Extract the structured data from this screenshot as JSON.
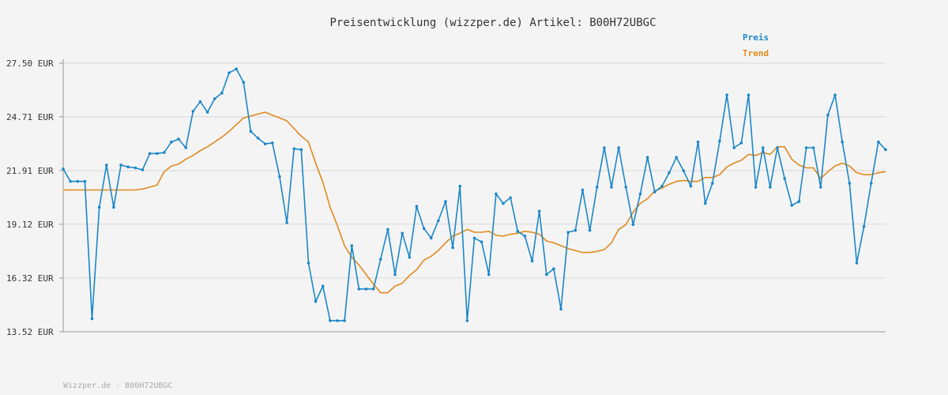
{
  "chart_data": {
    "type": "line",
    "title": "Preisentwicklung (wizzper.de) Artikel: B00H72UBGC",
    "footer": "Wizzper.de - B00H72UBGC",
    "y_ticks": [
      "27.50 EUR",
      "24.71 EUR",
      "21.91 EUR",
      "19.12 EUR",
      "16.32 EUR",
      "13.52 EUR"
    ],
    "y_tick_values": [
      27.5,
      24.71,
      21.91,
      19.12,
      16.32,
      13.52
    ],
    "ylim": [
      13.52,
      27.5
    ],
    "grid": true,
    "legend_position": "top-right",
    "colors": {
      "preis": "#1b87c8",
      "trend": "#e08a1e",
      "grid": "#d8d8d8",
      "axis": "#999999",
      "background": "#f4f4f4"
    },
    "series": [
      {
        "name": "Preis",
        "values": [
          22.0,
          21.35,
          21.35,
          21.35,
          14.2,
          20.0,
          22.2,
          20.0,
          22.2,
          22.1,
          22.05,
          21.95,
          22.8,
          22.8,
          22.85,
          23.4,
          23.55,
          23.1,
          25.0,
          25.5,
          24.95,
          25.65,
          25.95,
          27.0,
          27.2,
          26.5,
          23.95,
          23.6,
          23.3,
          23.35,
          21.6,
          19.2,
          23.05,
          23.0,
          17.1,
          15.1,
          15.9,
          14.1,
          14.1,
          14.1,
          18.0,
          15.75,
          15.75,
          15.75,
          17.3,
          18.85,
          16.5,
          18.65,
          17.4,
          20.05,
          18.9,
          18.4,
          19.3,
          20.3,
          17.9,
          21.1,
          14.1,
          18.4,
          18.2,
          16.5,
          20.7,
          20.2,
          20.5,
          18.75,
          18.5,
          17.2,
          19.8,
          16.5,
          16.8,
          14.7,
          18.7,
          18.8,
          20.9,
          18.8,
          21.05,
          23.1,
          21.05,
          23.1,
          21.05,
          19.1,
          20.7,
          22.6,
          20.8,
          21.1,
          21.8,
          22.6,
          21.9,
          21.1,
          23.4,
          20.2,
          21.25,
          23.45,
          25.85,
          23.1,
          23.35,
          25.85,
          21.05,
          23.1,
          21.05,
          23.1,
          21.5,
          20.1,
          20.3,
          23.1,
          23.1,
          21.05,
          24.8,
          25.85,
          23.4,
          21.25,
          17.1,
          19.0,
          21.25,
          23.4,
          23.0
        ]
      },
      {
        "name": "Trend",
        "values": [
          20.9,
          20.9,
          20.9,
          20.9,
          20.9,
          20.9,
          20.9,
          20.9,
          20.9,
          20.9,
          20.9,
          20.95,
          21.05,
          21.15,
          21.85,
          22.15,
          22.25,
          22.5,
          22.7,
          22.95,
          23.15,
          23.4,
          23.65,
          23.95,
          24.3,
          24.65,
          24.75,
          24.85,
          24.95,
          24.8,
          24.65,
          24.5,
          24.1,
          23.7,
          23.4,
          22.3,
          21.3,
          20.0,
          19.05,
          18.0,
          17.4,
          17.0,
          16.5,
          16.0,
          15.55,
          15.55,
          15.9,
          16.05,
          16.45,
          16.75,
          17.25,
          17.45,
          17.75,
          18.15,
          18.5,
          18.65,
          18.85,
          18.7,
          18.7,
          18.75,
          18.55,
          18.5,
          18.6,
          18.65,
          18.75,
          18.7,
          18.6,
          18.25,
          18.15,
          18.0,
          17.85,
          17.75,
          17.65,
          17.65,
          17.7,
          17.8,
          18.15,
          18.85,
          19.1,
          19.75,
          20.2,
          20.45,
          20.85,
          21.0,
          21.2,
          21.35,
          21.4,
          21.35,
          21.35,
          21.55,
          21.55,
          21.7,
          22.1,
          22.3,
          22.45,
          22.75,
          22.7,
          22.85,
          22.75,
          23.15,
          23.15,
          22.5,
          22.2,
          22.05,
          22.05,
          21.5,
          21.85,
          22.15,
          22.3,
          22.15,
          21.8,
          21.7,
          21.7,
          21.8,
          21.85
        ]
      }
    ]
  }
}
